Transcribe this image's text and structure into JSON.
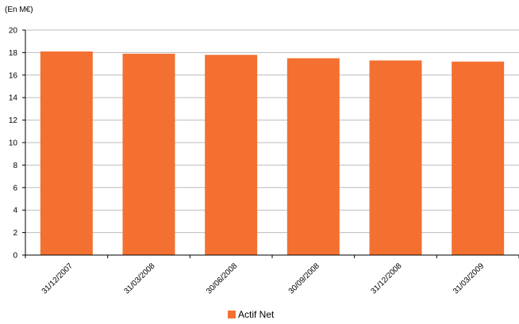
{
  "chart_data": {
    "type": "bar",
    "unit_label": "(En M€)",
    "categories": [
      "31/12/2007",
      "31/03/2008",
      "30/06/2008",
      "30/09/2008",
      "31/12/2008",
      "31/03/2009"
    ],
    "series": [
      {
        "name": "Actif Net",
        "values": [
          18.1,
          17.9,
          17.8,
          17.5,
          17.3,
          17.2
        ],
        "color": "#f37030"
      }
    ],
    "ylim": [
      0,
      20
    ],
    "yticks": [
      "0",
      "2",
      "4",
      "6",
      "8",
      "10",
      "12",
      "14",
      "16",
      "18",
      "20"
    ],
    "grid": true,
    "legend_position": "bottom-center"
  }
}
